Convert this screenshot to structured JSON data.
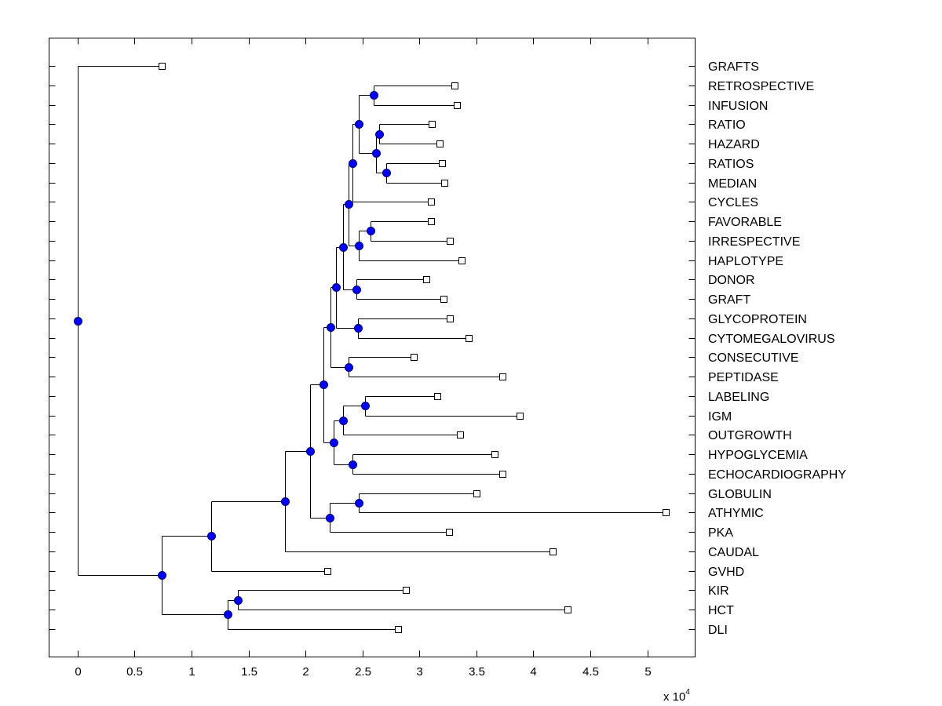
{
  "chart_data": {
    "type": "dendrogram",
    "title": "",
    "xlabel": "",
    "ylabel": "",
    "x_exponent_label": "x 10",
    "x_exponent_power": "4",
    "xlim": [
      -0.25,
      5.42
    ],
    "x_ticks": [
      0,
      0.5,
      1,
      1.5,
      2,
      2.5,
      3,
      3.5,
      4,
      4.5,
      5
    ],
    "x_tick_labels": [
      "0",
      "0.5",
      "1",
      "1.5",
      "2",
      "2.5",
      "3",
      "3.5",
      "4",
      "4.5",
      "5"
    ],
    "grid": false,
    "orientation": "leaves-right, root-left",
    "internal_node_color": "#0000ff",
    "leaf_marker": "open-square",
    "leaves": [
      {
        "label": "GRAFTS",
        "value": 0.74
      },
      {
        "label": "RETROSPECTIVE",
        "value": 3.31
      },
      {
        "label": "INFUSION",
        "value": 3.33
      },
      {
        "label": "RATIO",
        "value": 3.11
      },
      {
        "label": "HAZARD",
        "value": 3.18
      },
      {
        "label": "RATIOS",
        "value": 3.2
      },
      {
        "label": "MEDIAN",
        "value": 3.22
      },
      {
        "label": "CYCLES",
        "value": 3.1
      },
      {
        "label": "FAVORABLE",
        "value": 3.1
      },
      {
        "label": "IRRESPECTIVE",
        "value": 3.27
      },
      {
        "label": "HAPLOTYPE",
        "value": 3.37
      },
      {
        "label": "DONOR",
        "value": 3.06
      },
      {
        "label": "GRAFT",
        "value": 3.21
      },
      {
        "label": "GLYCOPROTEIN",
        "value": 3.27
      },
      {
        "label": "CYTOMEGALOVIRUS",
        "value": 3.43
      },
      {
        "label": "CONSECUTIVE",
        "value": 2.95
      },
      {
        "label": "PEPTIDASE",
        "value": 3.73
      },
      {
        "label": "LABELING",
        "value": 3.16
      },
      {
        "label": "IGM",
        "value": 3.88
      },
      {
        "label": "OUTGROWTH",
        "value": 3.36
      },
      {
        "label": "HYPOGLYCEMIA",
        "value": 3.66
      },
      {
        "label": "ECHOCARDIOGRAPHY",
        "value": 3.73
      },
      {
        "label": "GLOBULIN",
        "value": 3.5
      },
      {
        "label": "ATHYMIC",
        "value": 5.16
      },
      {
        "label": "PKA",
        "value": 3.26
      },
      {
        "label": "CAUDAL",
        "value": 4.17
      },
      {
        "label": "GVHD",
        "value": 2.19
      },
      {
        "label": "KIR",
        "value": 2.88
      },
      {
        "label": "HCT",
        "value": 4.3
      },
      {
        "label": "DLI",
        "value": 2.81
      }
    ],
    "nodes": [
      {
        "id": "n0",
        "children": [
          "L1",
          "L2"
        ],
        "value": 2.6
      },
      {
        "id": "n1",
        "children": [
          "L3",
          "L4"
        ],
        "value": 2.65
      },
      {
        "id": "n2",
        "children": [
          "L5",
          "L6"
        ],
        "value": 2.71
      },
      {
        "id": "n3",
        "children": [
          "n1",
          "n2"
        ],
        "value": 2.62
      },
      {
        "id": "n4",
        "children": [
          "n0",
          "n3"
        ],
        "value": 2.47
      },
      {
        "id": "n5",
        "children": [
          "n4",
          "L7"
        ],
        "value": 2.41
      },
      {
        "id": "n6",
        "children": [
          "L8",
          "L9"
        ],
        "value": 2.57
      },
      {
        "id": "n7",
        "children": [
          "n6",
          "L10"
        ],
        "value": 2.47
      },
      {
        "id": "n8",
        "children": [
          "n5",
          "n7"
        ],
        "value": 2.38
      },
      {
        "id": "n9",
        "children": [
          "L11",
          "L12"
        ],
        "value": 2.45
      },
      {
        "id": "n10",
        "children": [
          "n8",
          "n9"
        ],
        "value": 2.33
      },
      {
        "id": "n11",
        "children": [
          "L13",
          "L14"
        ],
        "value": 2.46
      },
      {
        "id": "n12",
        "children": [
          "n10",
          "n11"
        ],
        "value": 2.27
      },
      {
        "id": "n13",
        "children": [
          "L15",
          "L16"
        ],
        "value": 2.38
      },
      {
        "id": "n14",
        "children": [
          "n12",
          "n13"
        ],
        "value": 2.22
      },
      {
        "id": "n15",
        "children": [
          "L17",
          "L18"
        ],
        "value": 2.52
      },
      {
        "id": "n16",
        "children": [
          "n15",
          "L19"
        ],
        "value": 2.33
      },
      {
        "id": "n17",
        "children": [
          "L20",
          "L21"
        ],
        "value": 2.41
      },
      {
        "id": "n18",
        "children": [
          "n16",
          "n17"
        ],
        "value": 2.25
      },
      {
        "id": "n19",
        "children": [
          "n14",
          "n18"
        ],
        "value": 2.16
      },
      {
        "id": "n20",
        "children": [
          "L22",
          "L23"
        ],
        "value": 2.47
      },
      {
        "id": "n22",
        "children": [
          "n20",
          "L24"
        ],
        "value": 2.21
      },
      {
        "id": "n23",
        "children": [
          "n19",
          "n22"
        ],
        "value": 2.04
      },
      {
        "id": "n24",
        "children": [
          "n23",
          "L25"
        ],
        "value": 1.82
      },
      {
        "id": "n25",
        "children": [
          "n24",
          "L26"
        ],
        "value": 1.17
      },
      {
        "id": "n26",
        "children": [
          "L27",
          "L28"
        ],
        "value": 1.41
      },
      {
        "id": "n27",
        "children": [
          "n26",
          "L29"
        ],
        "value": 1.32
      },
      {
        "id": "n28",
        "children": [
          "n25",
          "n27"
        ],
        "value": 0.74
      },
      {
        "id": "root",
        "children": [
          "L0",
          "n28"
        ],
        "value": 0
      }
    ]
  }
}
